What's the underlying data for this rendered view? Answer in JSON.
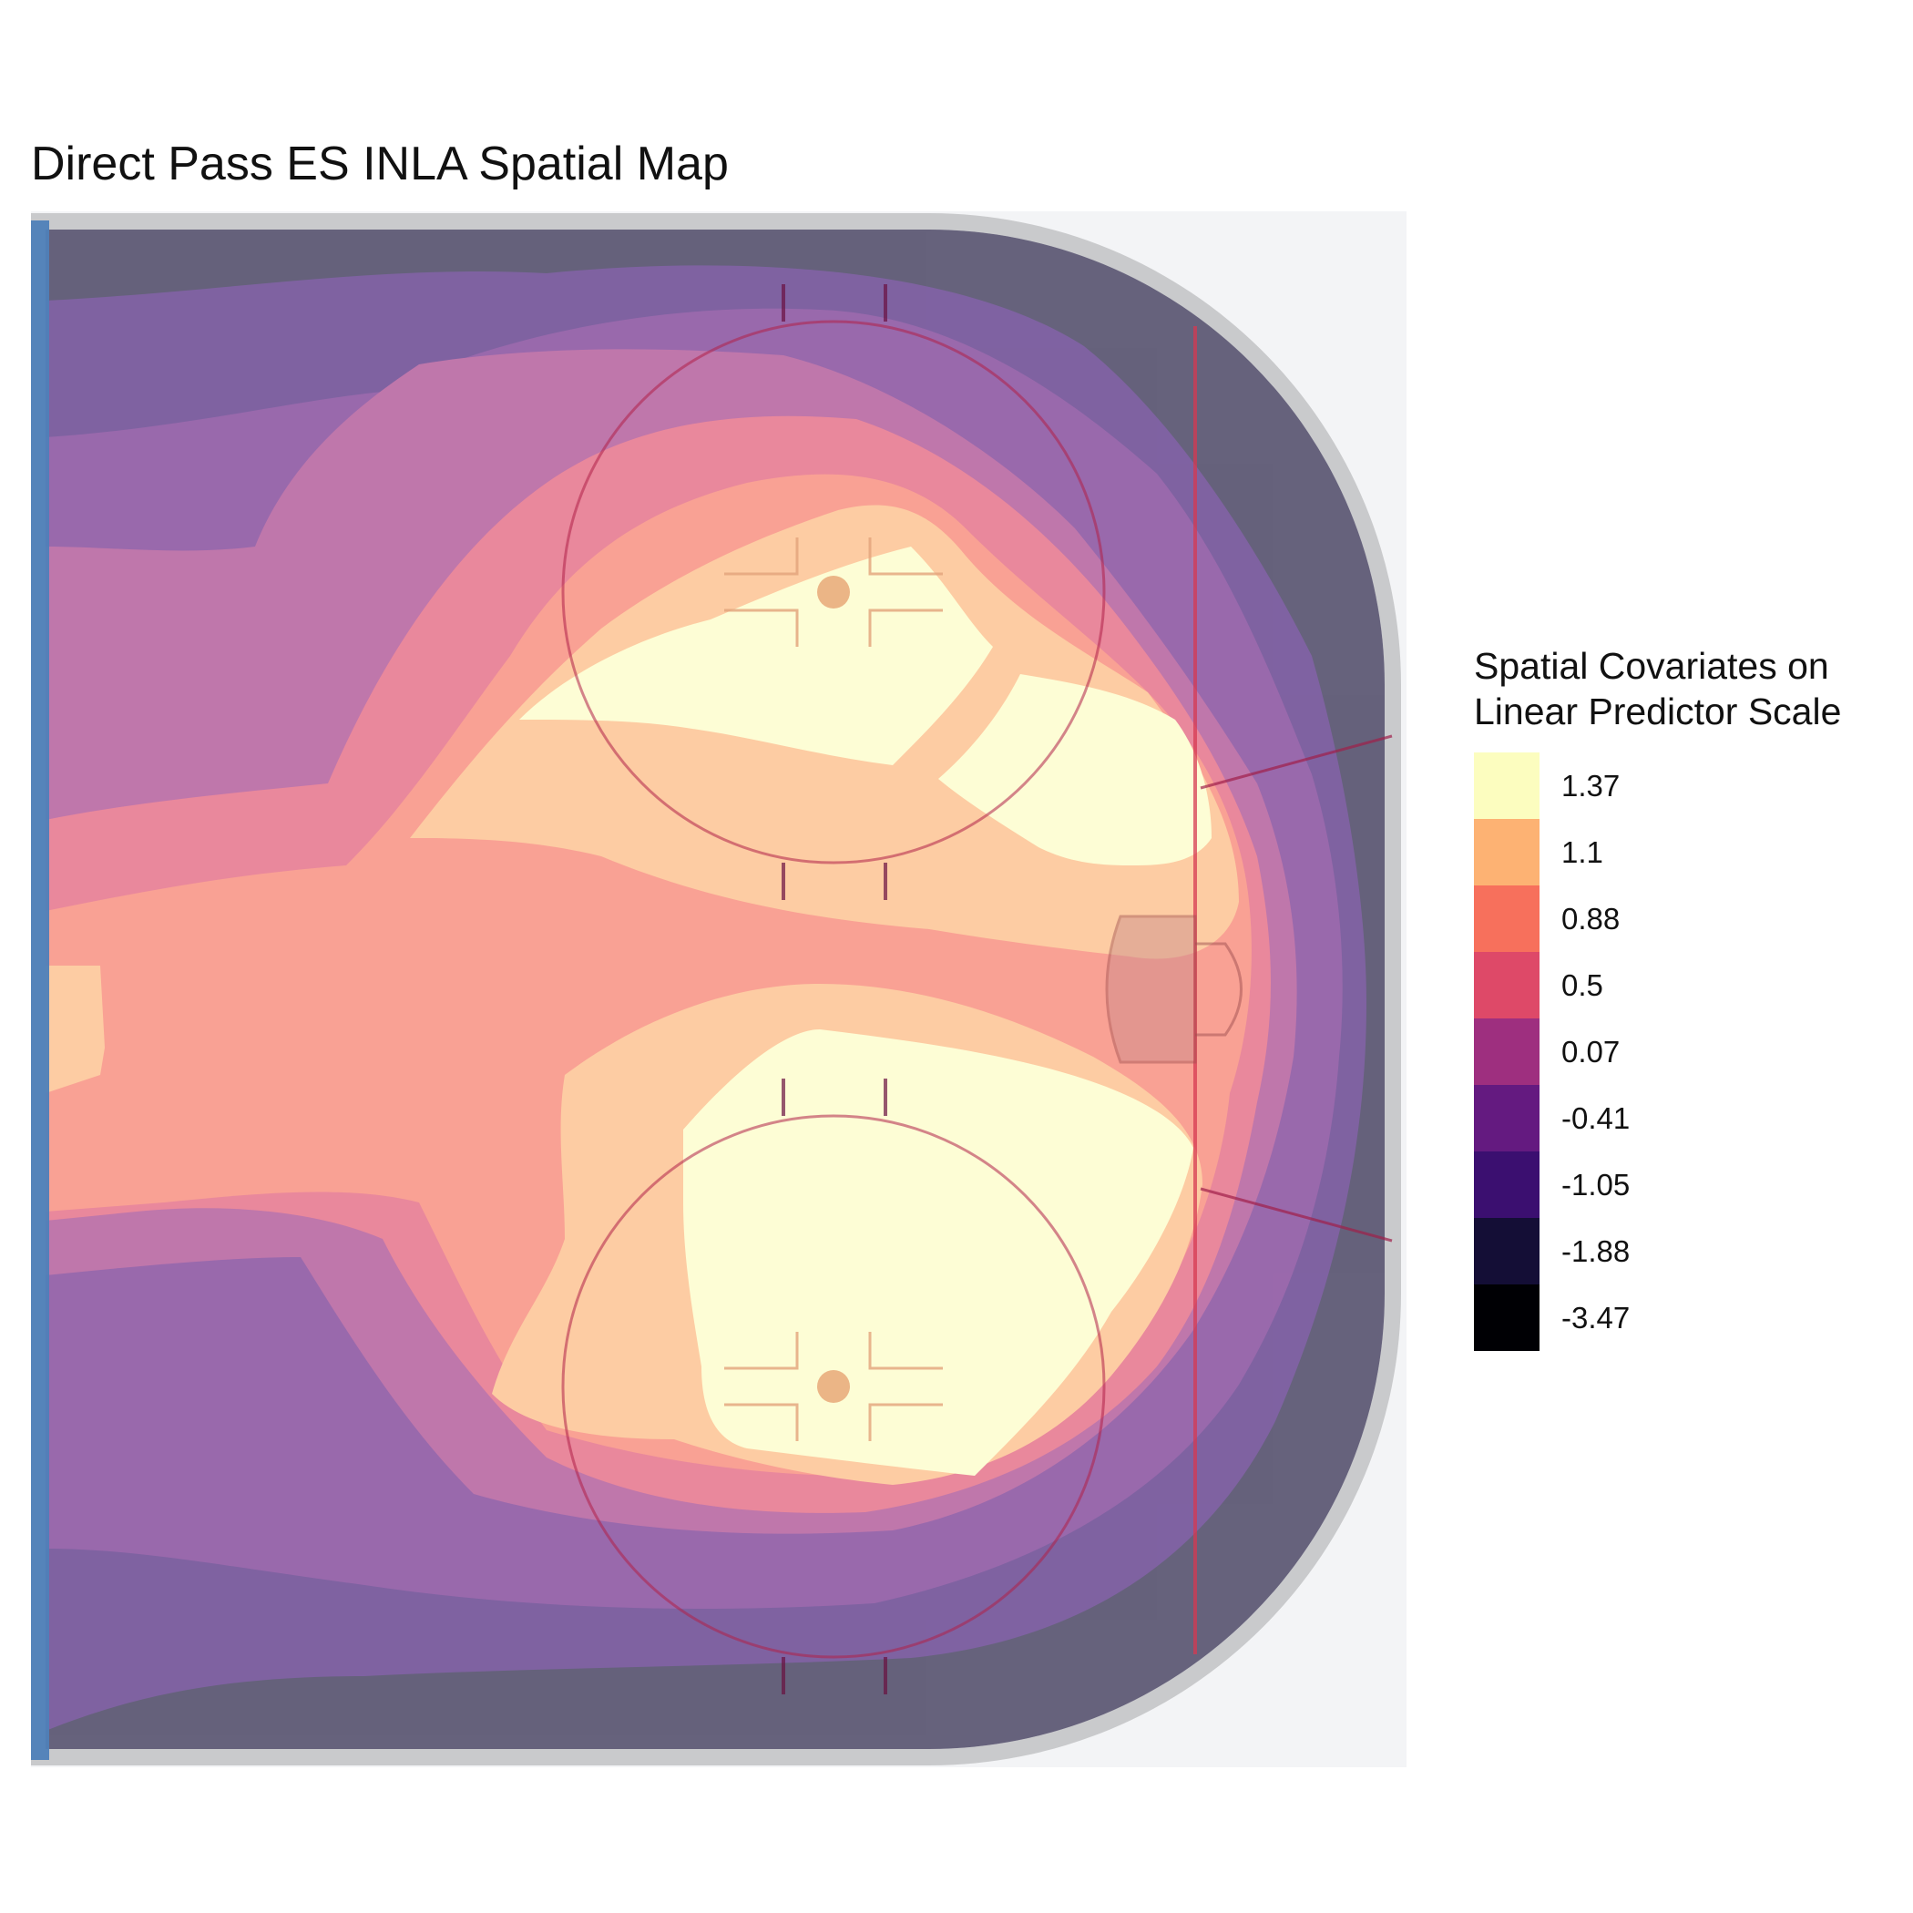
{
  "chart_data": {
    "type": "heatmap",
    "title": "Direct Pass ES INLA Spatial Map",
    "xlabel": "",
    "ylabel": "",
    "legend": {
      "title_lines": [
        "Spatial Covariates on",
        "Linear Predictor Scale"
      ],
      "placement": "right",
      "bins": [
        {
          "label": "1.37",
          "color": "#FCFDBF"
        },
        {
          "label": "1.1",
          "color": "#FDB273"
        },
        {
          "label": "0.88",
          "color": "#F7705C"
        },
        {
          "label": "0.5",
          "color": "#DE4968"
        },
        {
          "label": "0.07",
          "color": "#9E2F7F"
        },
        {
          "label": "-0.41",
          "color": "#641A80"
        },
        {
          "label": "-1.05",
          "color": "#3B0F70"
        },
        {
          "label": "-1.88",
          "color": "#140E36"
        },
        {
          "label": "-3.47",
          "color": "#000004"
        }
      ]
    },
    "background": "hockey rink offensive zone (half rink), goal on right",
    "overlay_opacity": 0.65,
    "surface": {
      "description": "binned spatial effect, highest around both faceoff circles",
      "hotspots": [
        "top faceoff circle",
        "bottom faceoff circle",
        "right of top circle near goal line"
      ],
      "grid": false
    }
  }
}
